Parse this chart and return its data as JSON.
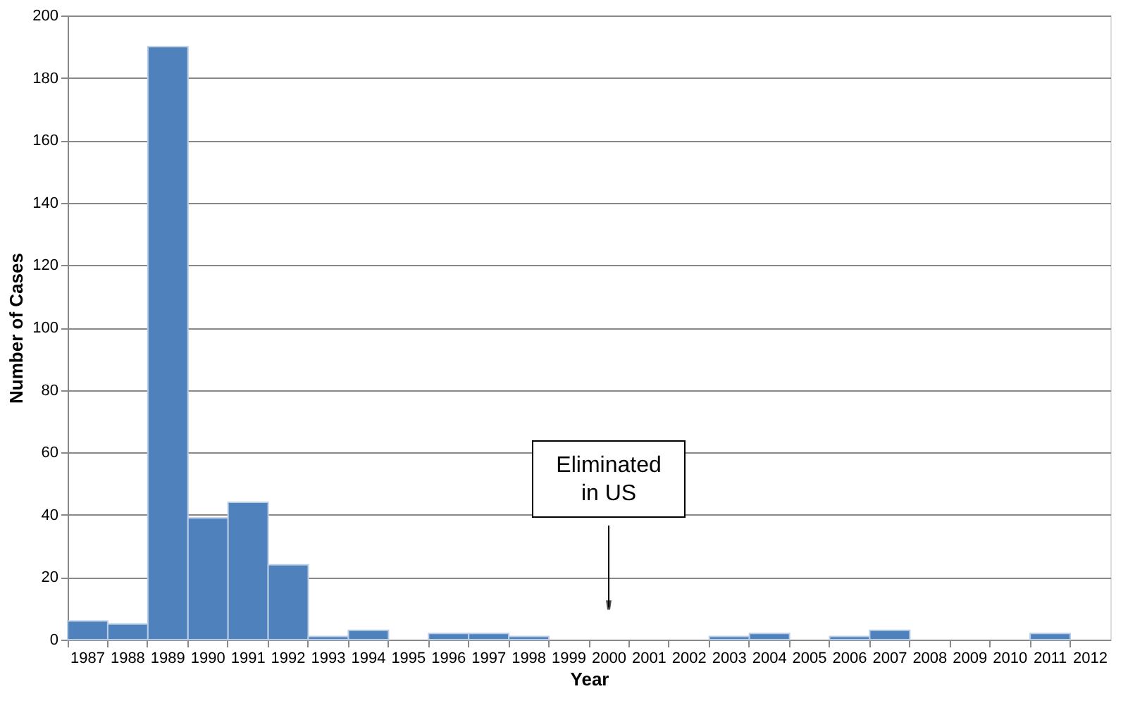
{
  "chart_data": {
    "type": "bar",
    "xlabel": "Year",
    "ylabel": "Number of Cases",
    "categories": [
      "1987",
      "1988",
      "1989",
      "1990",
      "1991",
      "1992",
      "1993",
      "1994",
      "1995",
      "1996",
      "1997",
      "1998",
      "1999",
      "2000",
      "2001",
      "2002",
      "2003",
      "2004",
      "2005",
      "2006",
      "2007",
      "2008",
      "2009",
      "2010",
      "2011",
      "2012"
    ],
    "values": [
      6,
      5,
      190,
      39,
      44,
      24,
      1,
      3,
      0,
      2,
      2,
      1,
      0,
      0,
      0,
      0,
      1,
      2,
      0,
      1,
      3,
      0,
      0,
      0,
      2,
      0
    ],
    "color": "#4f81bd",
    "ylim": [
      0,
      200
    ],
    "yticks": [
      0,
      20,
      40,
      60,
      80,
      100,
      120,
      140,
      160,
      180,
      200
    ],
    "grid": "y",
    "annotations": [
      "Eliminated\nin US"
    ]
  }
}
